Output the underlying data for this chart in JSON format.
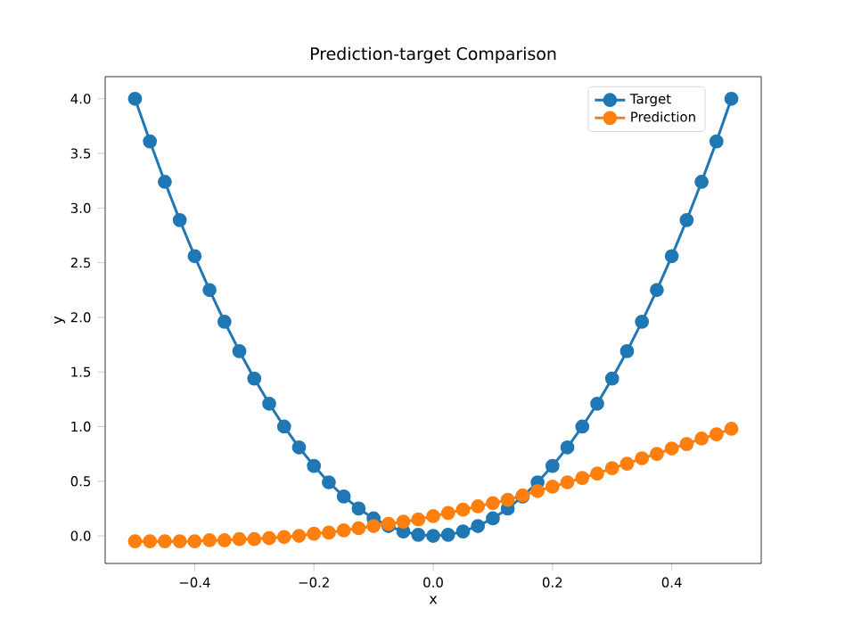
{
  "chart_data": {
    "type": "line",
    "title": "Prediction-target Comparison",
    "xlabel": "x",
    "ylabel": "y",
    "x": [
      -0.5,
      -0.475,
      -0.45,
      -0.425,
      -0.4,
      -0.375,
      -0.35,
      -0.325,
      -0.3,
      -0.275,
      -0.25,
      -0.225,
      -0.2,
      -0.175,
      -0.15,
      -0.125,
      -0.1,
      -0.075,
      -0.05,
      -0.025,
      0,
      0.025,
      0.05,
      0.075,
      0.1,
      0.125,
      0.15,
      0.175,
      0.2,
      0.225,
      0.25,
      0.275,
      0.3,
      0.325,
      0.35,
      0.375,
      0.4,
      0.425,
      0.45,
      0.475,
      0.5
    ],
    "series": [
      {
        "name": "Target",
        "color": "#1f77b4",
        "values": [
          4.0,
          3.61,
          3.24,
          2.89,
          2.56,
          2.25,
          1.96,
          1.69,
          1.44,
          1.21,
          1.0,
          0.81,
          0.64,
          0.49,
          0.36,
          0.25,
          0.16,
          0.09,
          0.04,
          0.01,
          0,
          0.01,
          0.04,
          0.09,
          0.16,
          0.25,
          0.36,
          0.49,
          0.64,
          0.81,
          1.0,
          1.21,
          1.44,
          1.69,
          1.96,
          2.25,
          2.56,
          2.89,
          3.24,
          3.61,
          4.0
        ]
      },
      {
        "name": "Prediction",
        "color": "#ff7f0e",
        "values": [
          -0.05,
          -0.05,
          -0.05,
          -0.05,
          -0.05,
          -0.04,
          -0.04,
          -0.03,
          -0.03,
          -0.02,
          -0.01,
          0.0,
          0.02,
          0.03,
          0.05,
          0.07,
          0.09,
          0.11,
          0.13,
          0.15,
          0.18,
          0.21,
          0.24,
          0.27,
          0.3,
          0.33,
          0.37,
          0.41,
          0.45,
          0.49,
          0.53,
          0.57,
          0.62,
          0.66,
          0.71,
          0.75,
          0.8,
          0.84,
          0.89,
          0.93,
          0.98
        ]
      }
    ],
    "xlim": [
      -0.55,
      0.55
    ],
    "ylim": [
      -0.2525,
      4.2025
    ],
    "xticks": [
      {
        "value": -0.4,
        "label": "−0.4"
      },
      {
        "value": -0.2,
        "label": "−0.2"
      },
      {
        "value": 0,
        "label": "0.0"
      },
      0.2,
      0.4
    ],
    "yticks": [
      {
        "value": 0,
        "label": "0.0"
      },
      0.5,
      {
        "value": 1,
        "label": "1.0"
      },
      1.5,
      {
        "value": 2,
        "label": "2.0"
      },
      2.5,
      {
        "value": 3,
        "label": "3.0"
      },
      3.5,
      {
        "value": 4,
        "label": "4.0"
      }
    ],
    "grid": false,
    "legend": "top right",
    "marker": "circle",
    "line_style": "solid"
  }
}
